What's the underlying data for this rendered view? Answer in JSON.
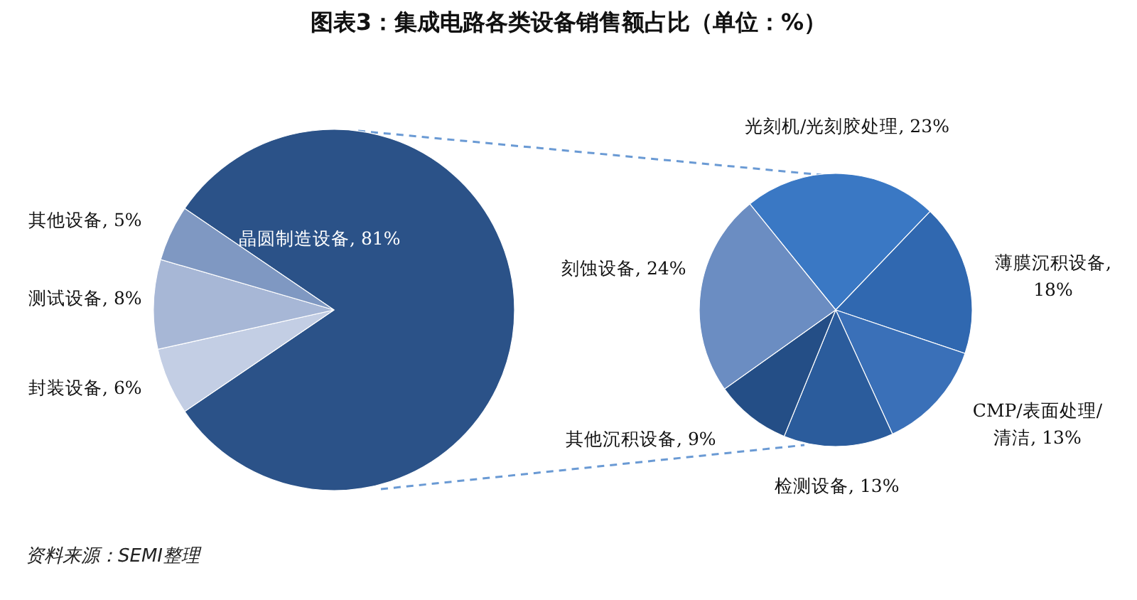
{
  "chart_data": [
    {
      "type": "pie",
      "title": "图表3：集成电路各类设备销售额占比（单位：%）",
      "categories": [
        "晶圆制造设备",
        "封装设备",
        "测试设备",
        "其他设备"
      ],
      "values": [
        81,
        6,
        8,
        5
      ],
      "colors": [
        "#2b5288",
        "#c3cee4",
        "#a7b7d6",
        "#7f98c2"
      ],
      "value_labels": [
        ", 81%",
        ", 6%",
        ", 8%",
        ", 5%"
      ],
      "annotations": [
        "资料来源：SEMI整理"
      ]
    },
    {
      "type": "pie",
      "categories": [
        "光刻机/光刻胶处理",
        "薄膜沉积设备",
        "CMP/表面处理/清洁",
        "检测设备",
        "其他沉积设备",
        "刻蚀设备"
      ],
      "values": [
        23,
        18,
        13,
        13,
        9,
        24
      ],
      "colors": [
        "#3a78c4",
        "#3068b0",
        "#3a70b8",
        "#2b5c9c",
        "#244e86",
        "#6b8dc2"
      ],
      "value_labels": [
        ", 23%",
        ", 18%",
        ", 13%",
        ", 13%",
        ", 9%",
        ", 24%"
      ]
    }
  ]
}
